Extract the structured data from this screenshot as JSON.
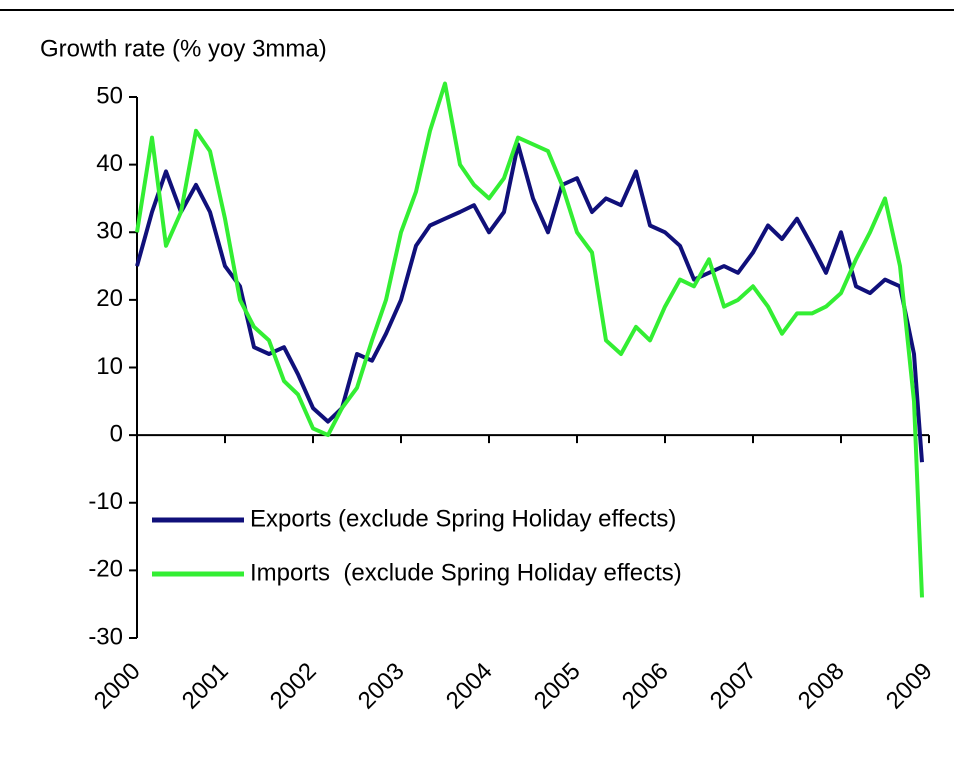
{
  "chart_data": {
    "type": "line",
    "ylabel": "Growth rate (% yoy 3mma)",
    "x": [
      2000,
      2000.17,
      2000.33,
      2000.5,
      2000.67,
      2000.83,
      2001,
      2001.17,
      2001.33,
      2001.5,
      2001.67,
      2001.83,
      2002,
      2002.17,
      2002.33,
      2002.5,
      2002.67,
      2002.83,
      2003,
      2003.17,
      2003.33,
      2003.5,
      2003.67,
      2003.83,
      2004,
      2004.17,
      2004.33,
      2004.5,
      2004.67,
      2004.83,
      2005,
      2005.17,
      2005.33,
      2005.5,
      2005.67,
      2005.83,
      2006,
      2006.17,
      2006.33,
      2006.5,
      2006.67,
      2006.83,
      2007,
      2007.17,
      2007.33,
      2007.5,
      2007.67,
      2007.83,
      2008,
      2008.17,
      2008.33,
      2008.5,
      2008.67,
      2008.83,
      2008.92
    ],
    "series": [
      {
        "name": "Exports (exclude Spring Holiday effects)",
        "color": "#10107a",
        "values": [
          25,
          33,
          39,
          33,
          37,
          33,
          25,
          22,
          13,
          12,
          13,
          9,
          4,
          2,
          4,
          12,
          11,
          15,
          20,
          28,
          31,
          32,
          33,
          34,
          30,
          33,
          43,
          35,
          30,
          37,
          38,
          33,
          35,
          34,
          39,
          31,
          30,
          28,
          23,
          24,
          25,
          24,
          27,
          31,
          29,
          32,
          28,
          24,
          30,
          22,
          21,
          23,
          22,
          12,
          -4
        ]
      },
      {
        "name": "Imports  (exclude Spring Holiday effects)",
        "color": "#33ee33",
        "values": [
          30,
          44,
          28,
          33,
          45,
          42,
          32,
          20,
          16,
          14,
          8,
          6,
          1,
          0,
          4,
          7,
          14,
          20,
          30,
          36,
          45,
          52,
          40,
          37,
          35,
          38,
          44,
          43,
          42,
          37,
          30,
          27,
          14,
          12,
          16,
          14,
          19,
          23,
          22,
          26,
          19,
          20,
          22,
          19,
          15,
          18,
          18,
          19,
          21,
          26,
          30,
          35,
          25,
          5,
          -24
        ]
      }
    ],
    "xlim": [
      2000,
      2009
    ],
    "xticks": [
      2000,
      2001,
      2002,
      2003,
      2004,
      2005,
      2006,
      2007,
      2008,
      2009
    ],
    "ylim": [
      -30,
      50
    ],
    "yticks": [
      -30,
      -20,
      -10,
      0,
      10,
      20,
      30,
      40,
      50
    ],
    "legend": "lower left",
    "grid": false
  }
}
